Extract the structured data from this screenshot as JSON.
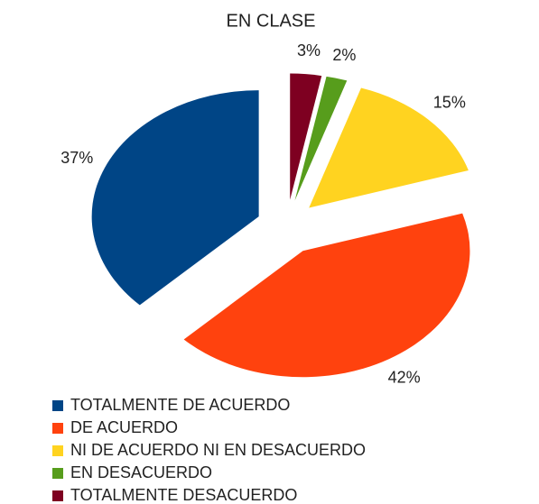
{
  "chart_data": {
    "type": "pie",
    "title": "EN CLASE",
    "categories": [
      "TOTALMENTE DE ACUERDO",
      "DE ACUERDO",
      "NI DE ACUERDO NI EN DESACUERDO",
      "EN DESACUERDO",
      "TOTALMENTE DESACUERDO"
    ],
    "values": [
      37,
      42,
      15,
      2,
      3
    ],
    "value_labels": [
      "37%",
      "42%",
      "15%",
      "2%",
      "3%"
    ],
    "colors": [
      "#004586",
      "#ff420e",
      "#ffd320",
      "#579d1c",
      "#7e0021"
    ],
    "legend": "bottom"
  }
}
